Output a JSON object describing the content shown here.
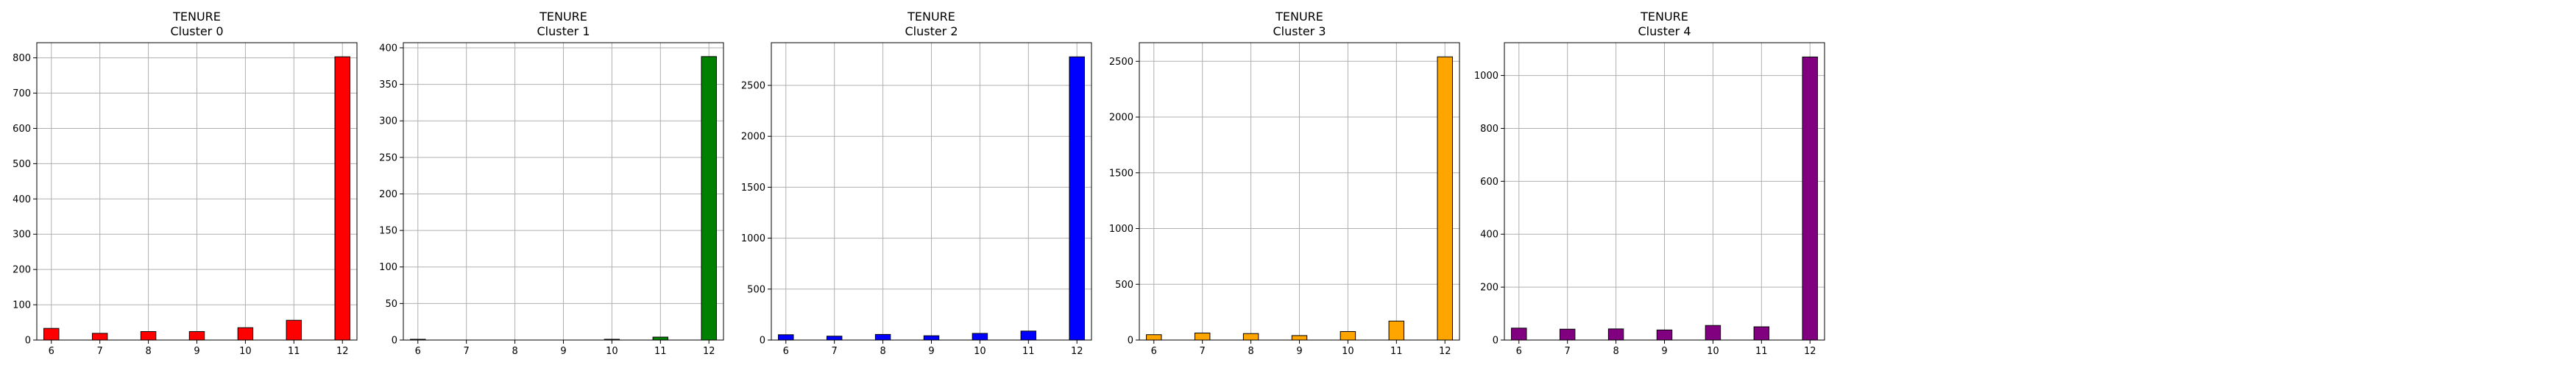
{
  "chart_data": [
    {
      "type": "bar",
      "title": "TENURE",
      "subtitle": "Cluster 0",
      "color": "#ff0000",
      "x": [
        6,
        7,
        8,
        9,
        10,
        11,
        12
      ],
      "values": [
        33,
        19,
        24,
        24,
        35,
        56,
        803
      ],
      "xlim": [
        5.7,
        12.3
      ],
      "ylim": [
        0,
        843
      ],
      "xticks": [
        "6",
        "7",
        "8",
        "9",
        "10",
        "11",
        "12"
      ],
      "yticks": [
        "0",
        "100",
        "200",
        "300",
        "400",
        "500",
        "600",
        "700",
        "800"
      ],
      "grid": true
    },
    {
      "type": "bar",
      "title": "TENURE",
      "subtitle": "Cluster 1",
      "color": "#008000",
      "x": [
        6,
        7,
        8,
        9,
        10,
        11,
        12
      ],
      "values": [
        1,
        0,
        0,
        0,
        1,
        4,
        388
      ],
      "xlim": [
        5.7,
        12.3
      ],
      "ylim": [
        0,
        407
      ],
      "xticks": [
        "6",
        "7",
        "8",
        "9",
        "10",
        "11",
        "12"
      ],
      "yticks": [
        "0",
        "50",
        "100",
        "150",
        "200",
        "250",
        "300",
        "350",
        "400"
      ],
      "grid": true
    },
    {
      "type": "bar",
      "title": "TENURE",
      "subtitle": "Cluster 2",
      "color": "#0000ff",
      "x": [
        6,
        7,
        8,
        9,
        10,
        11,
        12
      ],
      "values": [
        52,
        38,
        55,
        42,
        65,
        88,
        2780
      ],
      "xlim": [
        5.7,
        12.3
      ],
      "ylim": [
        0,
        2919
      ],
      "xticks": [
        "6",
        "7",
        "8",
        "9",
        "10",
        "11",
        "12"
      ],
      "yticks": [
        "0",
        "500",
        "1000",
        "1500",
        "2000",
        "2500"
      ],
      "grid": true
    },
    {
      "type": "bar",
      "title": "TENURE",
      "subtitle": "Cluster 3",
      "color": "#ffa500",
      "x": [
        6,
        7,
        8,
        9,
        10,
        11,
        12
      ],
      "values": [
        48,
        63,
        58,
        40,
        76,
        170,
        2540
      ],
      "xlim": [
        5.7,
        12.3
      ],
      "ylim": [
        0,
        2667
      ],
      "xticks": [
        "6",
        "7",
        "8",
        "9",
        "10",
        "11",
        "12"
      ],
      "yticks": [
        "0",
        "500",
        "1000",
        "1500",
        "2000",
        "2500"
      ],
      "grid": true
    },
    {
      "type": "bar",
      "title": "TENURE",
      "subtitle": "Cluster 4",
      "color": "#800080",
      "x": [
        6,
        7,
        8,
        9,
        10,
        11,
        12
      ],
      "values": [
        45,
        41,
        42,
        38,
        55,
        50,
        1070
      ],
      "xlim": [
        5.7,
        12.3
      ],
      "ylim": [
        0,
        1124
      ],
      "xticks": [
        "6",
        "7",
        "8",
        "9",
        "10",
        "11",
        "12"
      ],
      "yticks": [
        "0",
        "200",
        "400",
        "600",
        "800",
        "1000"
      ],
      "grid": true
    }
  ]
}
